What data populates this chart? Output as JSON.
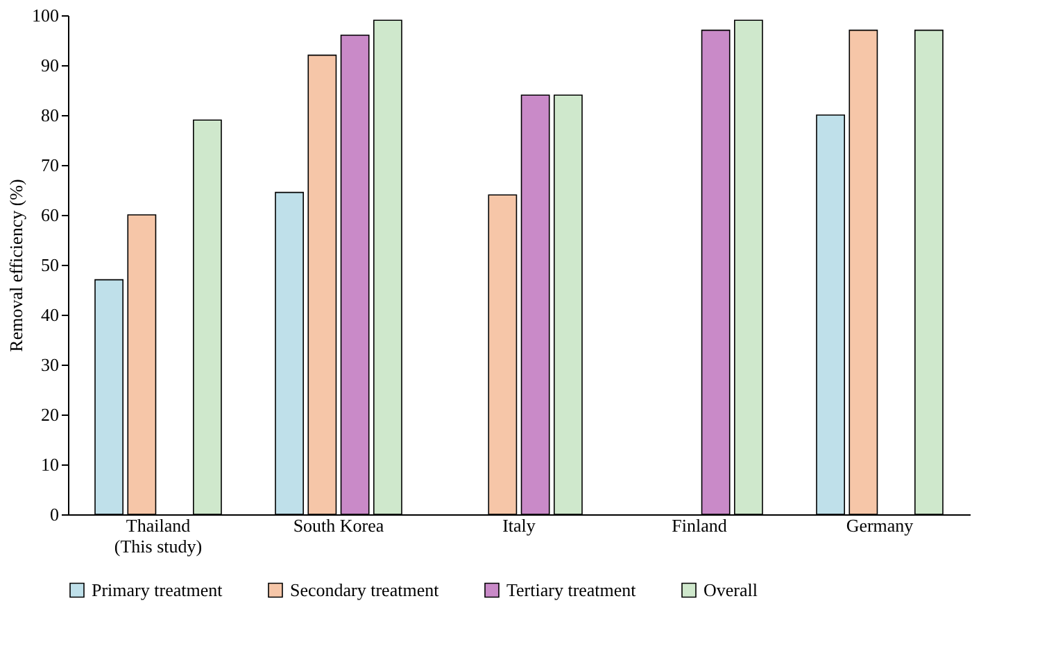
{
  "chart_data": {
    "type": "bar",
    "ylabel": "Removal efficiency (%)",
    "categories": [
      "Thailand\n(This study)",
      "South Korea",
      "Italy",
      "Finland",
      "Germany"
    ],
    "series": [
      {
        "name": "Primary treatment",
        "color": "#bfe0ea",
        "values": [
          47,
          64.5,
          null,
          null,
          80
        ]
      },
      {
        "name": "Secondary treatment",
        "color": "#f6c6a8",
        "values": [
          60,
          92,
          64,
          null,
          97
        ]
      },
      {
        "name": "Tertiary treatment",
        "color": "#c98ac8",
        "values": [
          null,
          96,
          84,
          97,
          null
        ]
      },
      {
        "name": "Overall",
        "color": "#cfe8cc",
        "values": [
          79,
          99,
          84,
          99,
          97
        ]
      }
    ],
    "ylim": [
      0,
      100
    ],
    "yticks": [
      0,
      10,
      20,
      30,
      40,
      50,
      60,
      70,
      80,
      90,
      100
    ],
    "grid": false,
    "legend": "bottom"
  }
}
